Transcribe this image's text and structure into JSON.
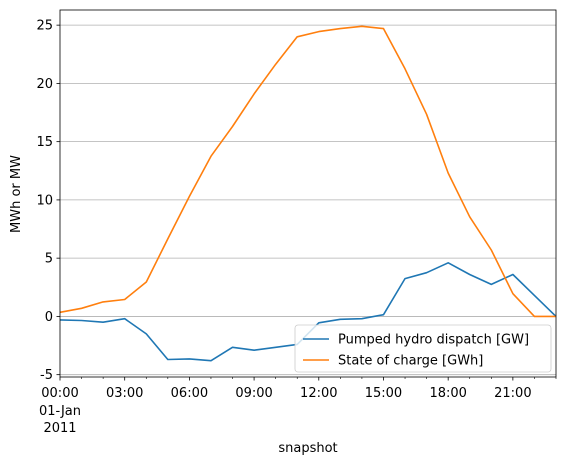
{
  "chart_data": {
    "type": "line",
    "xlabel": "snapshot",
    "ylabel": "MWh or MW",
    "x": [
      0,
      1,
      2,
      3,
      4,
      5,
      6,
      7,
      8,
      9,
      10,
      11,
      12,
      13,
      14,
      15,
      16,
      17,
      18,
      19,
      20,
      21,
      22,
      23
    ],
    "xlim": [
      0,
      23
    ],
    "ylim": [
      -5.2,
      26.3
    ],
    "x_ticks": [
      {
        "x": 0,
        "label": "00:00"
      },
      {
        "x": 3,
        "label": "03:00"
      },
      {
        "x": 6,
        "label": "06:00"
      },
      {
        "x": 9,
        "label": "09:00"
      },
      {
        "x": 12,
        "label": "12:00"
      },
      {
        "x": 15,
        "label": "15:00"
      },
      {
        "x": 18,
        "label": "18:00"
      },
      {
        "x": 21,
        "label": "21:00"
      }
    ],
    "x_tick_sublabels": [
      "01-Jan",
      "2011"
    ],
    "y_ticks": [
      -5,
      0,
      5,
      10,
      15,
      20,
      25
    ],
    "grid": "y",
    "legend_position": "lower-right",
    "series": [
      {
        "name": "Pumped hydro dispatch [GW]",
        "color": "#1f77b4",
        "values": [
          -0.3,
          -0.35,
          -0.5,
          -0.2,
          -1.5,
          -3.7,
          -3.65,
          -3.8,
          -2.65,
          -2.9,
          -2.65,
          -2.4,
          -0.55,
          -0.25,
          -0.2,
          0.15,
          3.25,
          3.75,
          4.6,
          3.6,
          2.75,
          3.6,
          1.8,
          0.0
        ]
      },
      {
        "name": "State of charge [GWh]",
        "color": "#ff7f0e",
        "values": [
          0.35,
          0.7,
          1.25,
          1.45,
          2.95,
          6.65,
          10.3,
          13.75,
          16.3,
          19.1,
          21.65,
          24.0,
          24.45,
          24.7,
          24.9,
          24.7,
          21.25,
          17.35,
          12.3,
          8.55,
          5.7,
          1.95,
          0.0,
          0.0
        ]
      }
    ]
  }
}
